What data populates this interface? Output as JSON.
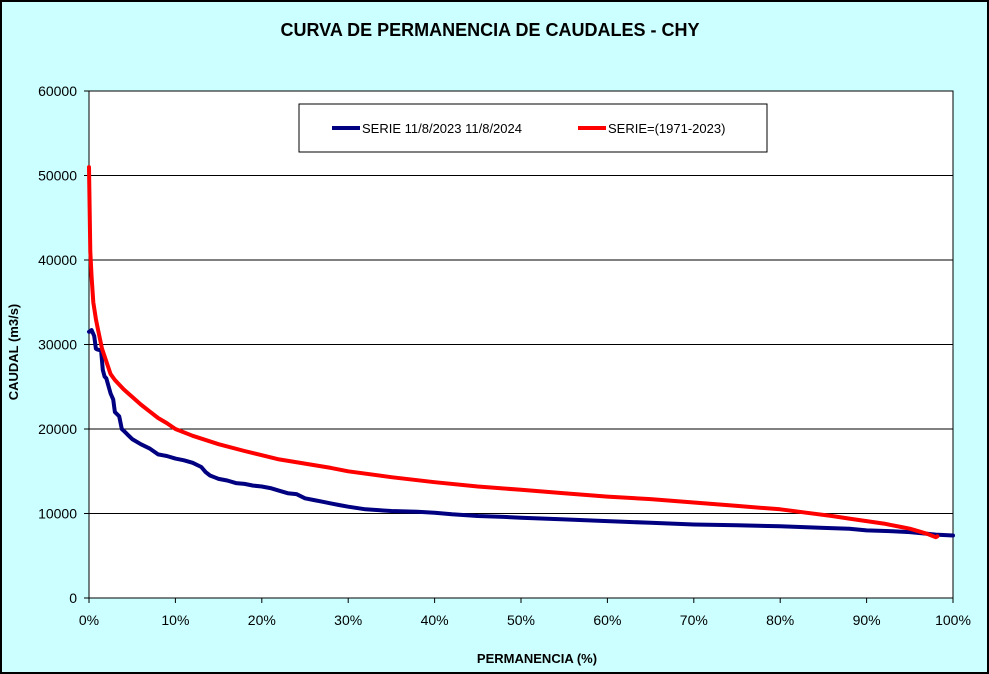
{
  "chart_data": {
    "type": "line",
    "title": "CURVA DE PERMANENCIA DE CAUDALES - CHY",
    "xlabel": "PERMANENCIA (%)",
    "ylabel": "CAUDAL (m3/s)",
    "xlim": [
      0,
      100
    ],
    "ylim": [
      0,
      60000
    ],
    "x_ticks": [
      "0%",
      "10%",
      "20%",
      "30%",
      "40%",
      "50%",
      "60%",
      "70%",
      "80%",
      "90%",
      "100%"
    ],
    "y_ticks": [
      "0",
      "10000",
      "20000",
      "30000",
      "40000",
      "50000",
      "60000"
    ],
    "grid": "horizontal",
    "legend_position": "top",
    "colors": {
      "background": "#ccffff",
      "plot_area": "#ffffff",
      "series1": "#000080",
      "series2": "#ff0000"
    },
    "series": [
      {
        "name": "SERIE 11/8/2023 11/8/2024",
        "color": "#000080",
        "x": [
          0,
          0.3,
          0.6,
          0.8,
          1.0,
          1.4,
          1.6,
          1.8,
          2.0,
          2.5,
          2.8,
          3.0,
          3.5,
          3.8,
          4.0,
          4.3,
          4.5,
          5,
          6,
          7,
          8,
          8.5,
          9,
          10,
          11,
          12,
          13,
          13.5,
          14,
          14.5,
          15,
          16,
          17,
          18,
          19,
          20,
          21,
          22,
          23,
          24,
          25,
          26,
          27,
          28,
          29,
          30,
          32,
          35,
          38,
          40,
          42,
          45,
          48,
          50,
          55,
          60,
          65,
          70,
          75,
          80,
          85,
          88,
          90,
          93,
          95,
          97,
          98,
          100
        ],
        "values": [
          31500,
          31700,
          31000,
          29500,
          29400,
          29300,
          27000,
          26200,
          26000,
          24200,
          23500,
          22000,
          21500,
          20000,
          19800,
          19500,
          19300,
          18800,
          18200,
          17700,
          17000,
          16900,
          16800,
          16500,
          16300,
          16000,
          15500,
          14900,
          14500,
          14300,
          14100,
          13900,
          13600,
          13500,
          13300,
          13200,
          13000,
          12700,
          12400,
          12300,
          11800,
          11600,
          11400,
          11200,
          11000,
          10800,
          10500,
          10300,
          10200,
          10100,
          9900,
          9700,
          9600,
          9500,
          9300,
          9100,
          8900,
          8700,
          8600,
          8500,
          8300,
          8200,
          8000,
          7900,
          7800,
          7600,
          7500,
          7400
        ]
      },
      {
        "name": "SERIE=(1971-2023)",
        "color": "#ff0000",
        "x": [
          0,
          0.15,
          0.3,
          0.5,
          0.8,
          1.0,
          1.5,
          2,
          2.5,
          3,
          4,
          5,
          6,
          7,
          8,
          9,
          10,
          12,
          15,
          18,
          20,
          22,
          25,
          28,
          30,
          35,
          40,
          45,
          50,
          55,
          60,
          65,
          70,
          75,
          80,
          83,
          86,
          88,
          90,
          92,
          94,
          95,
          96,
          97,
          97.5,
          98,
          98.2
        ],
        "values": [
          51000,
          41000,
          38000,
          35000,
          33000,
          32000,
          29500,
          28000,
          26500,
          25800,
          24700,
          23800,
          22900,
          22100,
          21300,
          20700,
          20000,
          19200,
          18200,
          17400,
          16900,
          16400,
          15900,
          15400,
          15000,
          14300,
          13700,
          13200,
          12800,
          12400,
          12000,
          11700,
          11300,
          10900,
          10500,
          10100,
          9700,
          9400,
          9100,
          8800,
          8400,
          8200,
          7900,
          7600,
          7400,
          7200,
          7300
        ]
      }
    ]
  }
}
